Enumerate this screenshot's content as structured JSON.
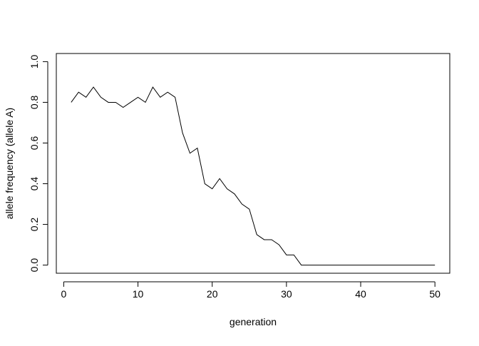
{
  "chart_data": {
    "type": "line",
    "title": "",
    "xlabel": "generation",
    "ylabel": "allele frequency (allele A)",
    "xlim": [
      -1,
      52
    ],
    "ylim": [
      -0.04,
      1.04
    ],
    "x_ticks": [
      0,
      10,
      20,
      30,
      40,
      50
    ],
    "y_ticks": [
      0.0,
      0.2,
      0.4,
      0.6,
      0.8,
      1.0
    ],
    "x_tick_labels": [
      "0",
      "10",
      "20",
      "30",
      "40",
      "50"
    ],
    "y_tick_labels": [
      "0.0",
      "0.2",
      "0.4",
      "0.6",
      "0.8",
      "1.0"
    ],
    "grid": false,
    "legend": "none",
    "line_color": "#000000",
    "series": [
      {
        "x": [
          1,
          2,
          3,
          4,
          5,
          6,
          7,
          8,
          9,
          10,
          11,
          12,
          13,
          14,
          15,
          16,
          17,
          18,
          19,
          20,
          21,
          22,
          23,
          24,
          25,
          26,
          27,
          28,
          29,
          30,
          31,
          32,
          33,
          34,
          35,
          36,
          37,
          38,
          39,
          40,
          41,
          42,
          43,
          44,
          45,
          46,
          47,
          48,
          49,
          50
        ],
        "values": [
          0.8,
          0.85,
          0.825,
          0.875,
          0.825,
          0.8,
          0.8,
          0.775,
          0.8,
          0.825,
          0.8,
          0.875,
          0.825,
          0.85,
          0.825,
          0.65,
          0.55,
          0.575,
          0.4,
          0.375,
          0.425,
          0.375,
          0.35,
          0.3,
          0.275,
          0.15,
          0.125,
          0.125,
          0.1,
          0.05,
          0.05,
          0.0,
          0.0,
          0.0,
          0.0,
          0.0,
          0.0,
          0.0,
          0.0,
          0.0,
          0.0,
          0.0,
          0.0,
          0.0,
          0.0,
          0.0,
          0.0,
          0.0,
          0.0,
          0.0
        ]
      }
    ]
  }
}
